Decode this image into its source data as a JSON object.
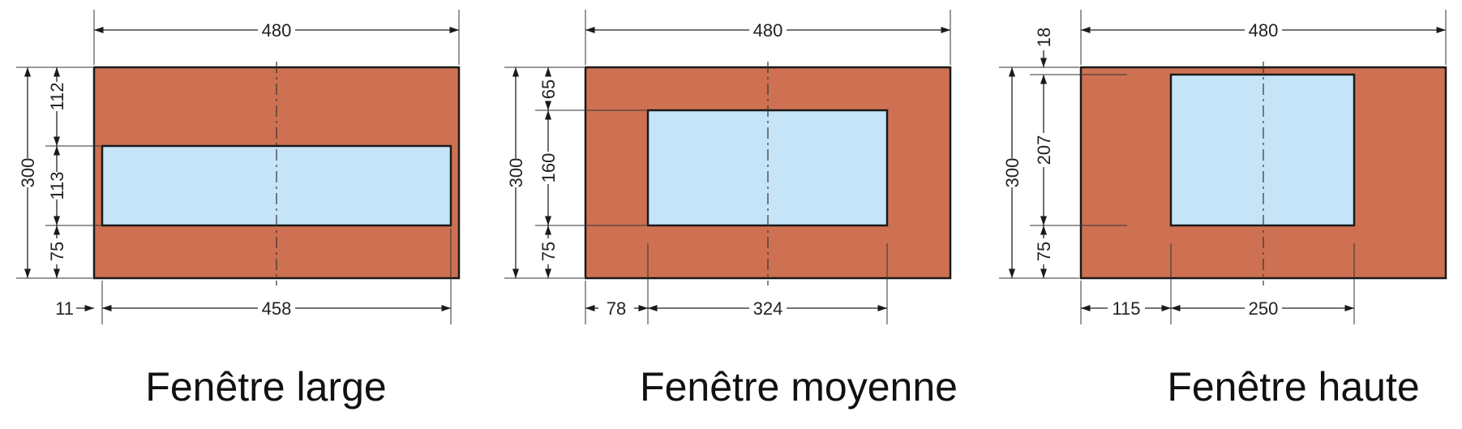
{
  "colors": {
    "wall": "#CE7152",
    "glass": "#C6E4F8",
    "line": "#1a1a1a"
  },
  "panels": [
    {
      "caption": "Fenêtre large",
      "wall_width": 480,
      "wall_height": 300,
      "window": {
        "left": 11,
        "bottom": 75,
        "width": 458,
        "height": 113
      },
      "dims": {
        "width": "480",
        "height": "300",
        "top": "112",
        "window_h": "113",
        "bottom": "75",
        "left": "11",
        "window_w": "458"
      }
    },
    {
      "caption": "Fenêtre moyenne",
      "wall_width": 480,
      "wall_height": 300,
      "window": {
        "left": 78,
        "bottom": 75,
        "width": 324,
        "height": 160
      },
      "dims": {
        "width": "480",
        "height": "300",
        "top": "65",
        "window_h": "160",
        "bottom": "75",
        "left": "78",
        "window_w": "324"
      }
    },
    {
      "caption": "Fenêtre haute",
      "wall_width": 480,
      "wall_height": 300,
      "window": {
        "left": 115,
        "bottom": 75,
        "width": 250,
        "height": 207
      },
      "dims": {
        "width": "480",
        "height": "300",
        "top": "18",
        "window_h": "207",
        "bottom": "75",
        "left": "115",
        "window_w": "250"
      }
    }
  ]
}
